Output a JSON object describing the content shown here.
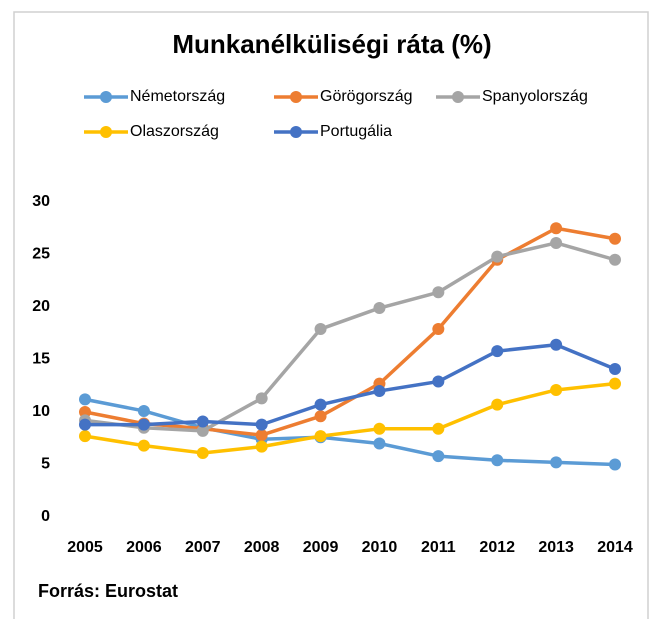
{
  "chart_data": {
    "type": "line",
    "title": "Munkanélküliségi ráta (%)",
    "source": "Forrás: Eurostat",
    "categories": [
      "2005",
      "2006",
      "2007",
      "2008",
      "2009",
      "2010",
      "2011",
      "2012",
      "2013",
      "2014"
    ],
    "series": [
      {
        "name": "Németország",
        "color": "#5b9bd5",
        "values": [
          11.2,
          10.1,
          8.5,
          7.4,
          7.6,
          7.0,
          5.8,
          5.4,
          5.2,
          5.0
        ]
      },
      {
        "name": "Görögország",
        "color": "#ed7d31",
        "values": [
          10.0,
          8.9,
          8.4,
          7.8,
          9.6,
          12.7,
          17.9,
          24.5,
          27.5,
          26.5
        ]
      },
      {
        "name": "Spanyolország",
        "color": "#a5a5a5",
        "values": [
          9.2,
          8.5,
          8.2,
          11.3,
          17.9,
          19.9,
          21.4,
          24.8,
          26.1,
          24.5
        ]
      },
      {
        "name": "Olaszország",
        "color": "#ffc000",
        "values": [
          7.7,
          6.8,
          6.1,
          6.7,
          7.7,
          8.4,
          8.4,
          10.7,
          12.1,
          12.7
        ]
      },
      {
        "name": "Portugália",
        "color": "#4472c4",
        "values": [
          8.8,
          8.8,
          9.1,
          8.8,
          10.7,
          12.0,
          12.9,
          15.8,
          16.4,
          14.1
        ]
      }
    ],
    "ylim": [
      0,
      30
    ],
    "yticks": [
      0,
      5,
      10,
      15,
      20,
      25,
      30
    ],
    "grid": false
  }
}
